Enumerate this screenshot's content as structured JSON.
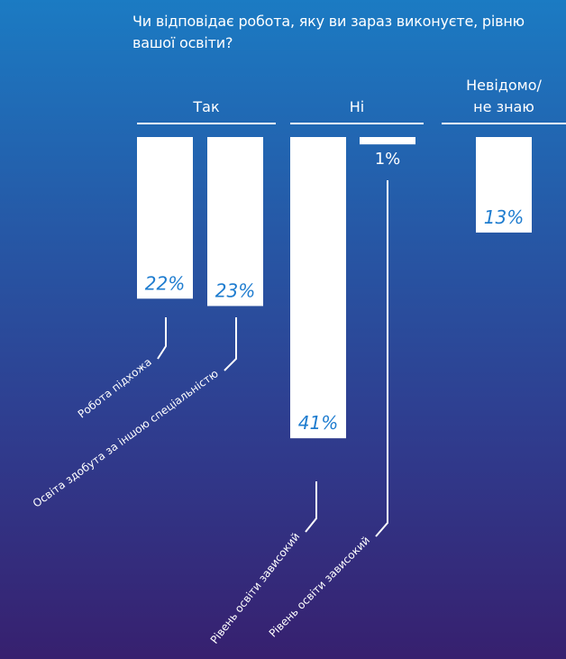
{
  "chart_data": {
    "type": "bar",
    "title": "Чи відповідає робота, яку ви зараз виконуєте, рівню вашої освіти?",
    "groups": [
      {
        "name": "Так",
        "bars": [
          {
            "label": "Робота підхожа",
            "value": 22,
            "display": "22%"
          },
          {
            "label": "Освіта здобута за іншою спеціальністю",
            "value": 23,
            "display": "23%"
          }
        ]
      },
      {
        "name": "Ні",
        "bars": [
          {
            "label": "Рівень освіти зависокий",
            "value": 41,
            "display": "41%"
          },
          {
            "label": "Рівень освіти зависокий",
            "value": 1,
            "display": "1%"
          }
        ]
      },
      {
        "name": "Невідомо/ не знаю",
        "name_lines": [
          "Невідомо/",
          "не знаю"
        ],
        "bars": [
          {
            "label": "",
            "value": 13,
            "display": "13%"
          }
        ]
      }
    ],
    "colors": {
      "bar": "#ffffff",
      "value_text": "#1e7ccf",
      "text": "#ffffff"
    }
  }
}
